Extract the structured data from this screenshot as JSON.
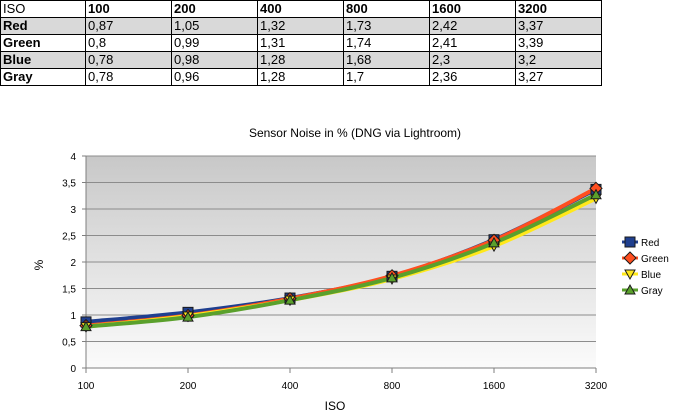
{
  "table": {
    "header": [
      "ISO",
      "100",
      "200",
      "400",
      "800",
      "1600",
      "3200"
    ],
    "rows": [
      {
        "label": "Red",
        "values": [
          "0,87",
          "1,05",
          "1,32",
          "1,73",
          "2,42",
          "3,37"
        ]
      },
      {
        "label": "Green",
        "values": [
          "0,8",
          "0,99",
          "1,31",
          "1,74",
          "2,41",
          "3,39"
        ]
      },
      {
        "label": "Blue",
        "values": [
          "0,78",
          "0,98",
          "1,28",
          "1,68",
          "2,3",
          "3,2"
        ]
      },
      {
        "label": "Gray",
        "values": [
          "0,78",
          "0,96",
          "1,28",
          "1,7",
          "2,36",
          "3,27"
        ]
      }
    ]
  },
  "chart_data": {
    "type": "line",
    "title": "Sensor Noise in % (DNG via Lightroom)",
    "xlabel": "ISO",
    "ylabel": "%",
    "categories": [
      "100",
      "200",
      "400",
      "800",
      "1600",
      "3200"
    ],
    "ylim": [
      0,
      4
    ],
    "yticks": [
      "0",
      "0,5",
      "1",
      "1,5",
      "2",
      "2,5",
      "3",
      "3,5",
      "4"
    ],
    "grid": true,
    "legend_position": "right",
    "series": [
      {
        "name": "Red",
        "values": [
          0.87,
          1.05,
          1.32,
          1.73,
          2.42,
          3.37
        ],
        "color": "#1f3f8f",
        "marker": "square"
      },
      {
        "name": "Green",
        "values": [
          0.8,
          0.99,
          1.31,
          1.74,
          2.41,
          3.39
        ],
        "color": "#ff4f1f",
        "marker": "diamond"
      },
      {
        "name": "Blue",
        "values": [
          0.78,
          0.98,
          1.28,
          1.68,
          2.3,
          3.2
        ],
        "color": "#ffe81a",
        "marker": "triangle-down"
      },
      {
        "name": "Gray",
        "values": [
          0.78,
          0.96,
          1.28,
          1.7,
          2.36,
          3.27
        ],
        "color": "#5aa02c",
        "marker": "triangle-up"
      }
    ]
  }
}
